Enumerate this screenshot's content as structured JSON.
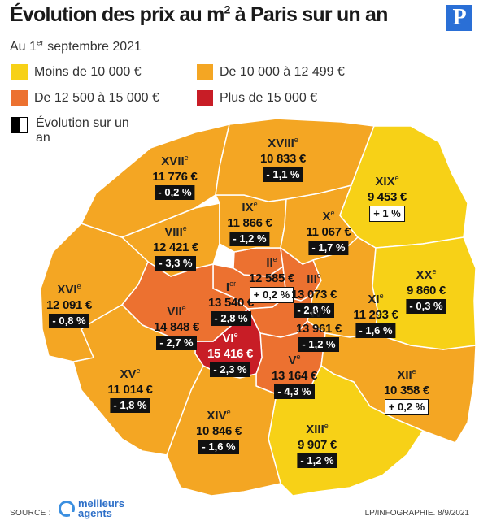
{
  "title": "Évolution des prix au m² à Paris sur un an",
  "logo_letter": "P",
  "subtitle": "Au 1er septembre 2021",
  "legend": [
    {
      "label": "Moins de 10 000 €",
      "color": "#f7d117"
    },
    {
      "label": "De 10 000 à 12 499 €",
      "color": "#f4a623"
    },
    {
      "label": "De 12 500 à 15 000 €",
      "color": "#ec7130"
    },
    {
      "label": "Plus de 15 000 €",
      "color": "#c81d26"
    }
  ],
  "evolution_legend": "Évolution sur un an",
  "arrondissements": [
    {
      "numeral": "I",
      "suffix": "er",
      "price": "13 540 €",
      "change": "- 2,8 %",
      "change_sign": "neg",
      "color": "#ec7130"
    },
    {
      "numeral": "II",
      "suffix": "e",
      "price": "12 585 €",
      "change": "+ 0,2 %",
      "change_sign": "pos",
      "color": "#ec7130"
    },
    {
      "numeral": "III",
      "suffix": "e",
      "price": "13 073 €",
      "change": "- 2,8 %",
      "change_sign": "neg",
      "color": "#ec7130"
    },
    {
      "numeral": "IV",
      "suffix": "e",
      "price": "13 961 €",
      "change": "- 1,2 %",
      "change_sign": "neg",
      "color": "#ec7130"
    },
    {
      "numeral": "V",
      "suffix": "e",
      "price": "13 164 €",
      "change": "- 4,3 %",
      "change_sign": "neg",
      "color": "#ec7130"
    },
    {
      "numeral": "VI",
      "suffix": "e",
      "price": "15 416 €",
      "change": "- 2,3 %",
      "change_sign": "neg",
      "color": "#c81d26"
    },
    {
      "numeral": "VII",
      "suffix": "e",
      "price": "14 848 €",
      "change": "- 2,7 %",
      "change_sign": "neg",
      "color": "#ec7130"
    },
    {
      "numeral": "VIII",
      "suffix": "e",
      "price": "12 421 €",
      "change": "- 3,3 %",
      "change_sign": "neg",
      "color": "#f4a623"
    },
    {
      "numeral": "IX",
      "suffix": "e",
      "price": "11 866 €",
      "change": "- 1,2 %",
      "change_sign": "neg",
      "color": "#f4a623"
    },
    {
      "numeral": "X",
      "suffix": "e",
      "price": "11 067 €",
      "change": "- 1,7 %",
      "change_sign": "neg",
      "color": "#f4a623"
    },
    {
      "numeral": "XI",
      "suffix": "e",
      "price": "11 293 €",
      "change": "- 1,6 %",
      "change_sign": "neg",
      "color": "#f4a623"
    },
    {
      "numeral": "XII",
      "suffix": "e",
      "price": "10 358 €",
      "change": "+ 0,2 %",
      "change_sign": "pos",
      "color": "#f4a623"
    },
    {
      "numeral": "XIII",
      "suffix": "e",
      "price": "9 907 €",
      "change": "- 1,2 %",
      "change_sign": "neg",
      "color": "#f7d117"
    },
    {
      "numeral": "XIV",
      "suffix": "e",
      "price": "10 846 €",
      "change": "- 1,6 %",
      "change_sign": "neg",
      "color": "#f4a623"
    },
    {
      "numeral": "XV",
      "suffix": "e",
      "price": "11 014 €",
      "change": "- 1,8 %",
      "change_sign": "neg",
      "color": "#f4a623"
    },
    {
      "numeral": "XVI",
      "suffix": "e",
      "price": "12 091 €",
      "change": "- 0,8 %",
      "change_sign": "neg",
      "color": "#f4a623"
    },
    {
      "numeral": "XVII",
      "suffix": "e",
      "price": "11 776 €",
      "change": "- 0,2 %",
      "change_sign": "neg",
      "color": "#f4a623"
    },
    {
      "numeral": "XVIII",
      "suffix": "e",
      "price": "10 833 €",
      "change": "- 1,1 %",
      "change_sign": "neg",
      "color": "#f4a623"
    },
    {
      "numeral": "XIX",
      "suffix": "e",
      "price": "9 453 €",
      "change": "+ 1 %",
      "change_sign": "pos",
      "color": "#f7d117"
    },
    {
      "numeral": "XX",
      "suffix": "e",
      "price": "9 860 €",
      "change": "- 0,3 %",
      "change_sign": "neg",
      "color": "#f7d117"
    }
  ],
  "source_label": "SOURCE :",
  "source_logo_line1": "meilleurs",
  "source_logo_line2": "agents",
  "credit": "LP/INFOGRAPHIE. 8/9/2021"
}
